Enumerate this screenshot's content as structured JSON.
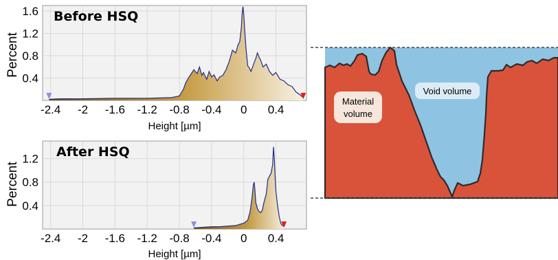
{
  "chart_data": [
    {
      "type": "area",
      "title": "Before HSQ",
      "xlabel": "Height [µm]",
      "ylabel": "Percent",
      "xlim": [
        -2.5,
        0.78
      ],
      "ylim": [
        0,
        1.7
      ],
      "xticks": [
        "-2.4",
        "-2",
        "-1.6",
        "-1.2",
        "-0.8",
        "-0.4",
        "0",
        "0.4"
      ],
      "yticks": [
        "0.4",
        "0.8",
        "1.2",
        "1.6"
      ],
      "grid": true,
      "series": [
        {
          "x": [
            -2.42,
            -2.3,
            -2.0,
            -1.6,
            -1.2,
            -0.9,
            -0.8,
            -0.75,
            -0.72,
            -0.68,
            -0.62,
            -0.58,
            -0.55,
            -0.52,
            -0.5,
            -0.46,
            -0.43,
            -0.4,
            -0.37,
            -0.33,
            -0.3,
            -0.26,
            -0.22,
            -0.18,
            -0.14,
            -0.1,
            -0.07,
            -0.05,
            -0.03,
            -0.02,
            -0.01,
            0.0,
            0.01,
            0.02,
            0.03,
            0.05,
            0.07,
            0.09,
            0.11,
            0.13,
            0.15,
            0.17,
            0.19,
            0.21,
            0.24,
            0.28,
            0.32,
            0.36,
            0.4,
            0.45,
            0.5,
            0.55,
            0.6,
            0.65,
            0.7,
            0.74
          ],
          "y": [
            0.02,
            0.03,
            0.03,
            0.04,
            0.04,
            0.05,
            0.08,
            0.2,
            0.32,
            0.42,
            0.55,
            0.48,
            0.6,
            0.45,
            0.5,
            0.38,
            0.52,
            0.42,
            0.46,
            0.35,
            0.42,
            0.45,
            0.55,
            0.7,
            0.9,
            0.85,
            1.0,
            1.05,
            1.3,
            1.55,
            1.68,
            1.55,
            1.3,
            1.1,
            0.9,
            0.62,
            0.58,
            0.52,
            0.6,
            0.68,
            0.75,
            0.85,
            0.78,
            0.72,
            0.6,
            0.65,
            0.52,
            0.45,
            0.5,
            0.38,
            0.35,
            0.28,
            0.25,
            0.15,
            0.1,
            0.05
          ]
        }
      ],
      "markers": {
        "left": "-2.42",
        "right": "0.74"
      }
    },
    {
      "type": "area",
      "title": "After HSQ",
      "xlabel": "Height [µm]",
      "ylabel": "Percent",
      "xlim": [
        -2.5,
        0.78
      ],
      "ylim": [
        0,
        1.5
      ],
      "xticks": [
        "-2.4",
        "-2",
        "-1.6",
        "-1.2",
        "-0.8",
        "-0.4",
        "0",
        "0.4"
      ],
      "yticks": [
        "0.4",
        "0.8",
        "1.2"
      ],
      "grid": true,
      "series": [
        {
          "x": [
            -0.62,
            -0.5,
            -0.4,
            -0.3,
            -0.2,
            -0.1,
            -0.05,
            0.0,
            0.05,
            0.08,
            0.1,
            0.12,
            0.13,
            0.14,
            0.15,
            0.17,
            0.19,
            0.21,
            0.23,
            0.25,
            0.28,
            0.3,
            0.32,
            0.34,
            0.36,
            0.37,
            0.38,
            0.39,
            0.4,
            0.42,
            0.44,
            0.46,
            0.48,
            0.5
          ],
          "y": [
            0.02,
            0.03,
            0.04,
            0.04,
            0.05,
            0.06,
            0.08,
            0.1,
            0.15,
            0.3,
            0.5,
            0.75,
            0.8,
            0.65,
            0.45,
            0.35,
            0.3,
            0.28,
            0.32,
            0.45,
            0.6,
            0.85,
            0.9,
            0.95,
            1.1,
            1.4,
            1.2,
            0.9,
            0.65,
            0.4,
            0.22,
            0.1,
            0.06,
            0.05
          ]
        }
      ],
      "markers": {
        "left": "-0.62",
        "right": "0.5"
      }
    }
  ],
  "diagram": {
    "material_label_line1": "Material",
    "material_label_line2": "volume",
    "void_label": "Void volume",
    "material_color": "#d9533a",
    "void_color": "#8fc3e2"
  }
}
